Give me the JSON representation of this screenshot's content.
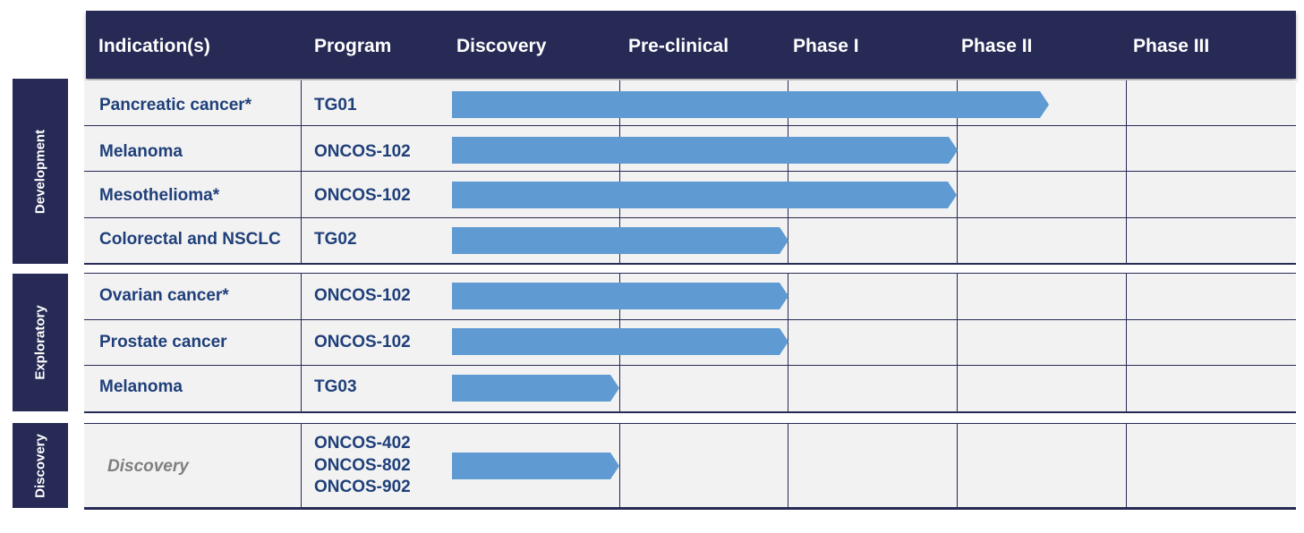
{
  "header": {
    "cols": [
      "Indication(s)",
      "Program",
      "Discovery",
      "Pre-clinical",
      "Phase I",
      "Phase II",
      "Phase III"
    ]
  },
  "sections": {
    "development": "Development",
    "exploratory": "Exploratory",
    "discovery": "Discovery"
  },
  "rows": [
    {
      "indication": "Pancreatic cancer*",
      "program": "TG01"
    },
    {
      "indication": "Melanoma",
      "program": "ONCOS-102"
    },
    {
      "indication": "Mesothelioma*",
      "program": "ONCOS-102"
    },
    {
      "indication": "Colorectal and NSCLC",
      "program": "TG02"
    },
    {
      "indication": "Ovarian cancer*",
      "program": "ONCOS-102"
    },
    {
      "indication": "Prostate cancer",
      "program": "ONCOS-102"
    },
    {
      "indication": "Melanoma",
      "program": "TG03"
    }
  ],
  "discovery_row": {
    "indication": "Discovery",
    "programs": [
      "ONCOS-402",
      "ONCOS-802",
      "ONCOS-902"
    ]
  },
  "colors": {
    "navy": "#262a55",
    "text": "#1f3f7a",
    "bar": "#5f9bd2",
    "row_bg": "#f2f2f2"
  }
}
